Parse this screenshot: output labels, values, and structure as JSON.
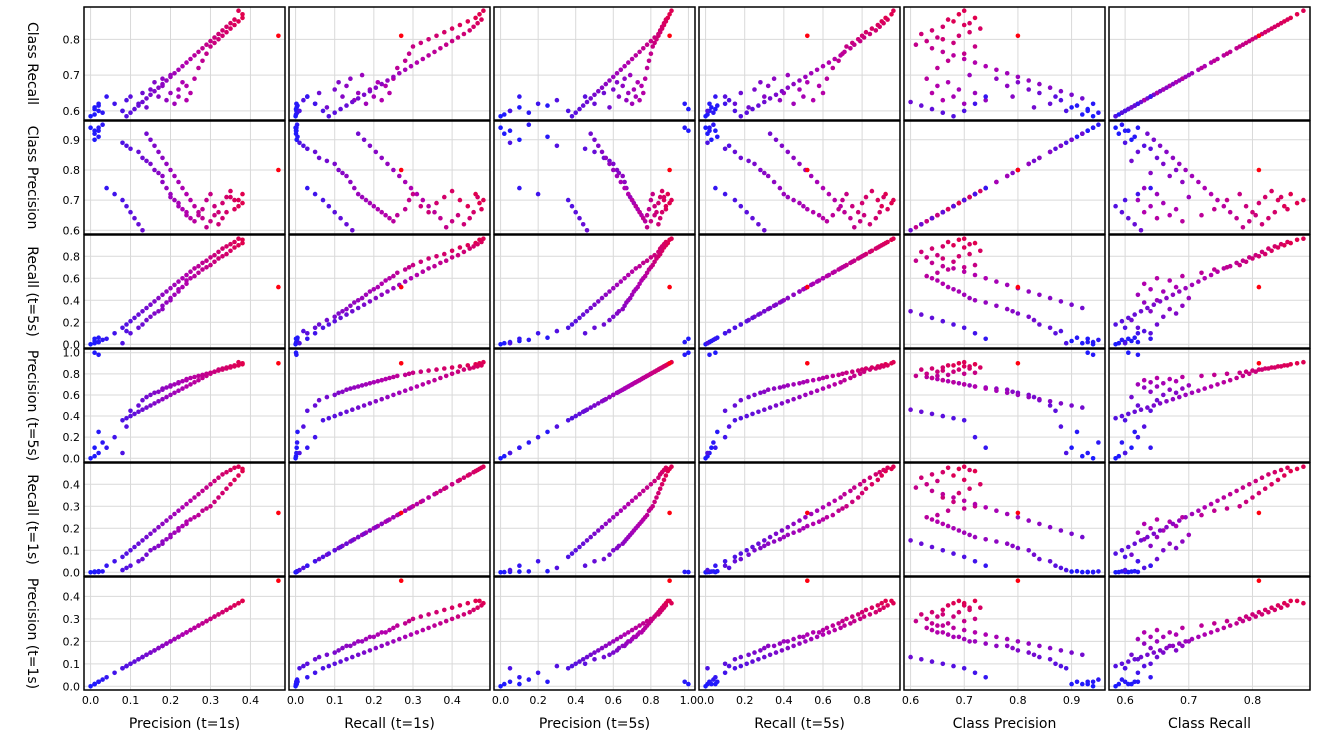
{
  "chart_data": {
    "type": "scatter",
    "layout": "scatter-matrix",
    "grid": true,
    "variables": [
      "Precision (t=1s)",
      "Recall (t=1s)",
      "Precision (t=5s)",
      "Recall (t=5s)",
      "Class Precision",
      "Class Recall"
    ],
    "ticks": [
      [
        "0.0",
        "0.1",
        "0.2",
        "0.3",
        "0.4"
      ],
      [
        "0.0",
        "0.1",
        "0.2",
        "0.3",
        "0.4"
      ],
      [
        "0.0",
        "0.2",
        "0.4",
        "0.6",
        "0.8",
        "1.0"
      ],
      [
        "0.0",
        "0.2",
        "0.4",
        "0.6",
        "0.8"
      ],
      [
        "0.6",
        "0.7",
        "0.8",
        "0.9"
      ],
      [
        "0.6",
        "0.7",
        "0.8"
      ]
    ],
    "color_scale": {
      "low": "#1a1aff",
      "mid": "#b000b0",
      "high": "#ff0010"
    },
    "observations": [
      {
        "p1": 0.0,
        "r1": 0.0,
        "p5": 0.0,
        "r5": 0.0,
        "cp": 0.94,
        "cr": 0.585
      },
      {
        "p1": 0.01,
        "r1": 0.001,
        "p5": 0.02,
        "r5": 0.01,
        "cp": 0.92,
        "cr": 0.59
      },
      {
        "p1": 0.02,
        "r1": 0.002,
        "p5": 0.05,
        "r5": 0.02,
        "cp": 0.93,
        "cr": 0.6
      },
      {
        "p1": 0.01,
        "r1": 0.003,
        "p5": 0.1,
        "r5": 0.03,
        "cp": 0.9,
        "cr": 0.61
      },
      {
        "p1": 0.03,
        "r1": 0.004,
        "p5": 0.15,
        "r5": 0.04,
        "cp": 0.95,
        "cr": 0.595
      },
      {
        "p1": 0.02,
        "r1": 0.005,
        "p5": 0.25,
        "r5": 0.06,
        "cp": 0.91,
        "cr": 0.615
      },
      {
        "p1": 0.01,
        "r1": 0.001,
        "p5": 1.0,
        "r5": 0.05,
        "cp": 0.93,
        "cr": 0.605
      },
      {
        "p1": 0.02,
        "r1": 0.002,
        "p5": 0.98,
        "r5": 0.02,
        "cp": 0.94,
        "cr": 0.62
      },
      {
        "p1": 0.08,
        "r1": 0.01,
        "p5": 0.05,
        "r5": 0.01,
        "cp": 0.89,
        "cr": 0.6
      },
      {
        "p1": 0.09,
        "r1": 0.02,
        "p5": 0.3,
        "r5": 0.12,
        "cp": 0.88,
        "cr": 0.63
      },
      {
        "p1": 0.1,
        "r1": 0.03,
        "p5": 0.45,
        "r5": 0.1,
        "cp": 0.87,
        "cr": 0.64
      },
      {
        "p1": 0.12,
        "r1": 0.05,
        "p5": 0.5,
        "r5": 0.15,
        "cp": 0.86,
        "cr": 0.62
      },
      {
        "p1": 0.13,
        "r1": 0.06,
        "p5": 0.55,
        "r5": 0.18,
        "cp": 0.84,
        "cr": 0.65
      },
      {
        "p1": 0.14,
        "r1": 0.08,
        "p5": 0.58,
        "r5": 0.22,
        "cp": 0.83,
        "cr": 0.61
      },
      {
        "p1": 0.15,
        "r1": 0.1,
        "p5": 0.6,
        "r5": 0.25,
        "cp": 0.82,
        "cr": 0.66
      },
      {
        "p1": 0.16,
        "r1": 0.11,
        "p5": 0.62,
        "r5": 0.28,
        "cp": 0.8,
        "cr": 0.68
      },
      {
        "p1": 0.17,
        "r1": 0.12,
        "p5": 0.63,
        "r5": 0.3,
        "cp": 0.79,
        "cr": 0.64
      },
      {
        "p1": 0.18,
        "r1": 0.13,
        "p5": 0.65,
        "r5": 0.32,
        "cp": 0.78,
        "cr": 0.67
      },
      {
        "p1": 0.18,
        "r1": 0.14,
        "p5": 0.66,
        "r5": 0.35,
        "cp": 0.76,
        "cr": 0.69
      },
      {
        "p1": 0.19,
        "r1": 0.15,
        "p5": 0.67,
        "r5": 0.38,
        "cp": 0.74,
        "cr": 0.63
      },
      {
        "p1": 0.2,
        "r1": 0.16,
        "p5": 0.68,
        "r5": 0.4,
        "cp": 0.72,
        "cr": 0.65
      },
      {
        "p1": 0.2,
        "r1": 0.17,
        "p5": 0.69,
        "r5": 0.42,
        "cp": 0.71,
        "cr": 0.7
      },
      {
        "p1": 0.21,
        "r1": 0.18,
        "p5": 0.7,
        "r5": 0.45,
        "cp": 0.7,
        "cr": 0.62
      },
      {
        "p1": 0.22,
        "r1": 0.19,
        "p5": 0.71,
        "r5": 0.48,
        "cp": 0.69,
        "cr": 0.66
      },
      {
        "p1": 0.22,
        "r1": 0.2,
        "p5": 0.72,
        "r5": 0.5,
        "cp": 0.68,
        "cr": 0.64
      },
      {
        "p1": 0.23,
        "r1": 0.21,
        "p5": 0.73,
        "r5": 0.52,
        "cp": 0.67,
        "cr": 0.68
      },
      {
        "p1": 0.24,
        "r1": 0.22,
        "p5": 0.74,
        "r5": 0.55,
        "cp": 0.66,
        "cr": 0.63
      },
      {
        "p1": 0.24,
        "r1": 0.23,
        "p5": 0.75,
        "r5": 0.58,
        "cp": 0.65,
        "cr": 0.67
      },
      {
        "p1": 0.25,
        "r1": 0.24,
        "p5": 0.76,
        "r5": 0.6,
        "cp": 0.64,
        "cr": 0.65
      },
      {
        "p1": 0.26,
        "r1": 0.25,
        "p5": 0.77,
        "r5": 0.62,
        "cp": 0.63,
        "cr": 0.69
      },
      {
        "p1": 0.27,
        "r1": 0.26,
        "p5": 0.78,
        "r5": 0.65,
        "cp": 0.65,
        "cr": 0.72
      },
      {
        "p1": 0.28,
        "r1": 0.28,
        "p5": 0.79,
        "r5": 0.68,
        "cp": 0.67,
        "cr": 0.74
      },
      {
        "p1": 0.29,
        "r1": 0.29,
        "p5": 0.8,
        "r5": 0.7,
        "cp": 0.7,
        "cr": 0.76
      },
      {
        "p1": 0.3,
        "r1": 0.3,
        "p5": 0.81,
        "r5": 0.72,
        "cp": 0.72,
        "cr": 0.78
      },
      {
        "p1": 0.31,
        "r1": 0.32,
        "p5": 0.82,
        "r5": 0.75,
        "cp": 0.68,
        "cr": 0.79
      },
      {
        "p1": 0.32,
        "r1": 0.34,
        "p5": 0.83,
        "r5": 0.78,
        "cp": 0.66,
        "cr": 0.8
      },
      {
        "p1": 0.33,
        "r1": 0.36,
        "p5": 0.84,
        "r5": 0.8,
        "cp": 0.69,
        "cr": 0.81
      },
      {
        "p1": 0.34,
        "r1": 0.38,
        "p5": 0.85,
        "r5": 0.82,
        "cp": 0.71,
        "cr": 0.82
      },
      {
        "p1": 0.35,
        "r1": 0.4,
        "p5": 0.86,
        "r5": 0.85,
        "cp": 0.73,
        "cr": 0.83
      },
      {
        "p1": 0.36,
        "r1": 0.42,
        "p5": 0.87,
        "r5": 0.88,
        "cp": 0.7,
        "cr": 0.84
      },
      {
        "p1": 0.37,
        "r1": 0.44,
        "p5": 0.88,
        "r5": 0.9,
        "cp": 0.68,
        "cr": 0.85
      },
      {
        "p1": 0.38,
        "r1": 0.46,
        "p5": 0.89,
        "r5": 0.92,
        "cp": 0.72,
        "cr": 0.86
      },
      {
        "p1": 0.38,
        "r1": 0.47,
        "p5": 0.9,
        "r5": 0.95,
        "cp": 0.69,
        "cr": 0.87
      },
      {
        "p1": 0.37,
        "r1": 0.48,
        "p5": 0.91,
        "r5": 0.96,
        "cp": 0.7,
        "cr": 0.88
      },
      {
        "p1": 0.36,
        "r1": 0.475,
        "p5": 0.88,
        "r5": 0.93,
        "cp": 0.67,
        "cr": 0.855
      },
      {
        "p1": 0.35,
        "r1": 0.465,
        "p5": 0.87,
        "r5": 0.91,
        "cp": 0.71,
        "cr": 0.845
      },
      {
        "p1": 0.34,
        "r1": 0.455,
        "p5": 0.86,
        "r5": 0.89,
        "cp": 0.66,
        "cr": 0.835
      },
      {
        "p1": 0.33,
        "r1": 0.445,
        "p5": 0.85,
        "r5": 0.87,
        "cp": 0.64,
        "cr": 0.825
      },
      {
        "p1": 0.32,
        "r1": 0.43,
        "p5": 0.84,
        "r5": 0.84,
        "cp": 0.62,
        "cr": 0.815
      },
      {
        "p1": 0.31,
        "r1": 0.415,
        "p5": 0.82,
        "r5": 0.81,
        "cp": 0.65,
        "cr": 0.805
      },
      {
        "p1": 0.3,
        "r1": 0.4,
        "p5": 0.8,
        "r5": 0.79,
        "cp": 0.63,
        "cr": 0.795
      },
      {
        "p1": 0.29,
        "r1": 0.385,
        "p5": 0.78,
        "r5": 0.76,
        "cp": 0.61,
        "cr": 0.785
      },
      {
        "p1": 0.28,
        "r1": 0.37,
        "p5": 0.76,
        "r5": 0.74,
        "cp": 0.64,
        "cr": 0.775
      },
      {
        "p1": 0.27,
        "r1": 0.355,
        "p5": 0.74,
        "r5": 0.71,
        "cp": 0.66,
        "cr": 0.765
      },
      {
        "p1": 0.26,
        "r1": 0.34,
        "p5": 0.72,
        "r5": 0.69,
        "cp": 0.68,
        "cr": 0.755
      },
      {
        "p1": 0.25,
        "r1": 0.325,
        "p5": 0.7,
        "r5": 0.66,
        "cp": 0.7,
        "cr": 0.745
      },
      {
        "p1": 0.24,
        "r1": 0.31,
        "p5": 0.68,
        "r5": 0.63,
        "cp": 0.72,
        "cr": 0.735
      },
      {
        "p1": 0.23,
        "r1": 0.295,
        "p5": 0.66,
        "r5": 0.6,
        "cp": 0.74,
        "cr": 0.725
      },
      {
        "p1": 0.22,
        "r1": 0.28,
        "p5": 0.64,
        "r5": 0.57,
        "cp": 0.76,
        "cr": 0.715
      },
      {
        "p1": 0.21,
        "r1": 0.265,
        "p5": 0.62,
        "r5": 0.54,
        "cp": 0.78,
        "cr": 0.705
      },
      {
        "p1": 0.2,
        "r1": 0.25,
        "p5": 0.6,
        "r5": 0.51,
        "cp": 0.8,
        "cr": 0.695
      },
      {
        "p1": 0.19,
        "r1": 0.235,
        "p5": 0.58,
        "r5": 0.48,
        "cp": 0.82,
        "cr": 0.685
      },
      {
        "p1": 0.18,
        "r1": 0.22,
        "p5": 0.56,
        "r5": 0.45,
        "cp": 0.84,
        "cr": 0.675
      },
      {
        "p1": 0.17,
        "r1": 0.205,
        "p5": 0.54,
        "r5": 0.42,
        "cp": 0.86,
        "cr": 0.665
      },
      {
        "p1": 0.16,
        "r1": 0.19,
        "p5": 0.52,
        "r5": 0.39,
        "cp": 0.88,
        "cr": 0.655
      },
      {
        "p1": 0.15,
        "r1": 0.175,
        "p5": 0.5,
        "r5": 0.36,
        "cp": 0.9,
        "cr": 0.645
      },
      {
        "p1": 0.14,
        "r1": 0.16,
        "p5": 0.48,
        "r5": 0.33,
        "cp": 0.92,
        "cr": 0.635
      },
      {
        "p1": 0.13,
        "r1": 0.145,
        "p5": 0.46,
        "r5": 0.3,
        "cp": 0.6,
        "cr": 0.625
      },
      {
        "p1": 0.12,
        "r1": 0.13,
        "p5": 0.44,
        "r5": 0.27,
        "cp": 0.62,
        "cr": 0.615
      },
      {
        "p1": 0.11,
        "r1": 0.115,
        "p5": 0.42,
        "r5": 0.24,
        "cp": 0.64,
        "cr": 0.605
      },
      {
        "p1": 0.1,
        "r1": 0.1,
        "p5": 0.4,
        "r5": 0.21,
        "cp": 0.66,
        "cr": 0.595
      },
      {
        "p1": 0.09,
        "r1": 0.085,
        "p5": 0.38,
        "r5": 0.18,
        "cp": 0.68,
        "cr": 0.585
      },
      {
        "p1": 0.08,
        "r1": 0.07,
        "p5": 0.36,
        "r5": 0.15,
        "cp": 0.7,
        "cr": 0.6
      },
      {
        "p1": 0.06,
        "r1": 0.05,
        "p5": 0.2,
        "r5": 0.1,
        "cp": 0.72,
        "cr": 0.62
      },
      {
        "p1": 0.04,
        "r1": 0.03,
        "p5": 0.1,
        "r5": 0.05,
        "cp": 0.74,
        "cr": 0.64
      },
      {
        "p1": 0.47,
        "r1": 0.27,
        "p5": 0.9,
        "r5": 0.52,
        "cp": 0.8,
        "cr": 0.81
      }
    ]
  }
}
